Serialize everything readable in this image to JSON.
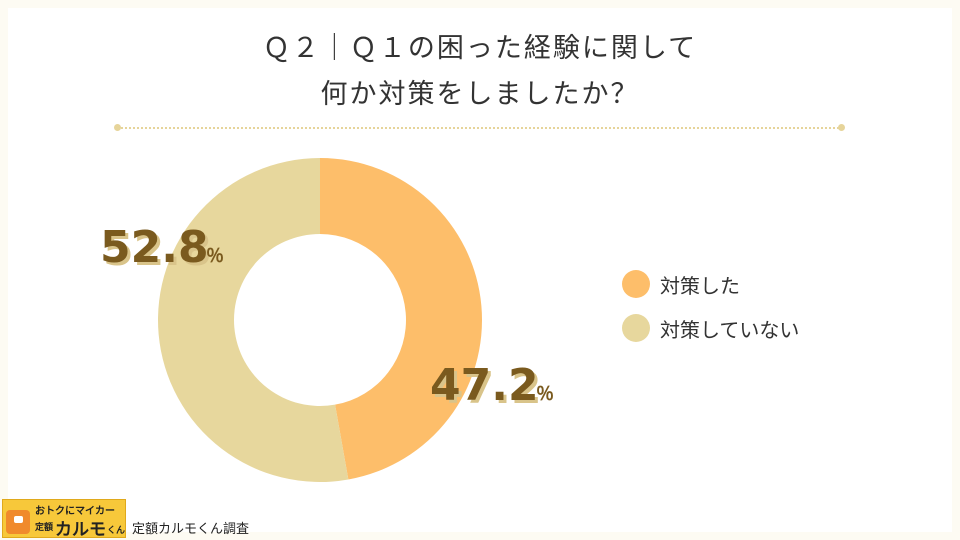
{
  "title_line1": "Ｑ２｜Ｑ１の困った経験に関して",
  "title_line2": "何か対策をしましたか？",
  "chart_data": {
    "type": "pie",
    "variant": "donut",
    "categories": [
      "対策した",
      "対策していない"
    ],
    "values": [
      47.2,
      52.8
    ],
    "colors": [
      "#fdbe6a",
      "#e7d79d"
    ],
    "value_labels": [
      "47.2",
      "52.8"
    ],
    "unit": "％",
    "legend_position": "right"
  },
  "footer": {
    "badge_top": "おトクにマイカー",
    "badge_small": "定額",
    "badge_big": "カルモ",
    "badge_kun": "くん",
    "source": "定額カルモくん調査"
  }
}
